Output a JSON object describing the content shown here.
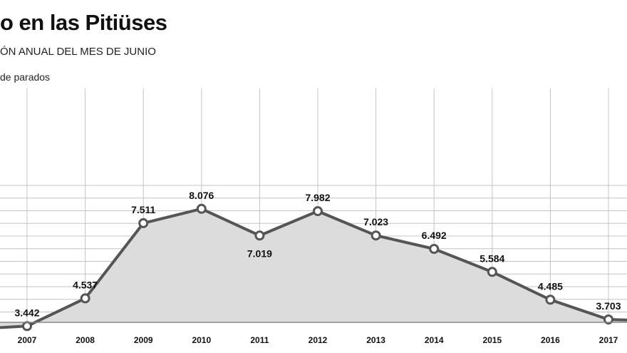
{
  "header": {
    "title": "o en las Pitiüses",
    "subtitle": "ÓN ANUAL DEL MES DE JUNIO",
    "units": "de parados"
  },
  "colors": {
    "line": "#555555",
    "area": "#dcdcdc",
    "grid": "#c4c4c4",
    "marker_fill": "#ffffff"
  },
  "chart_data": {
    "type": "area",
    "title": "o en las Pitiüses",
    "subtitle": "ÓN ANUAL DEL MES DE JUNIO",
    "ylabel": "de parados",
    "xlabel": "",
    "grid": true,
    "x": [
      "2007",
      "2008",
      "2009",
      "2010",
      "2011",
      "2012",
      "2013",
      "2014",
      "2015",
      "2016",
      "2017"
    ],
    "values": [
      3442,
      4537,
      7511,
      8076,
      7019,
      7982,
      7023,
      6492,
      5584,
      4485,
      3703
    ],
    "value_labels": [
      "3.442",
      "4.537",
      "7.511",
      "8.076",
      "7.019",
      "7.982",
      "7.023",
      "6.492",
      "5.584",
      "4.485",
      "3.703"
    ],
    "label_position": [
      "above",
      "above",
      "above",
      "above",
      "below",
      "above",
      "above",
      "above",
      "above",
      "above",
      "above"
    ],
    "ylim": [
      3000,
      9000
    ]
  }
}
